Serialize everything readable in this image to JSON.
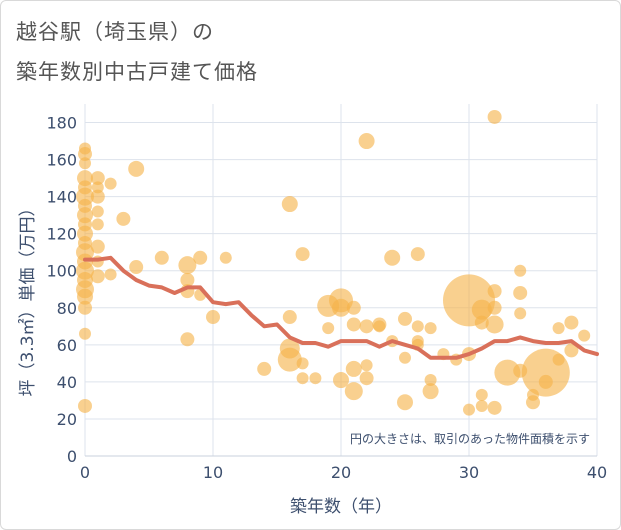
{
  "header": {
    "title_line1": "越谷駅（埼玉県）の",
    "title_line2": "築年数別中古戸建て価格"
  },
  "chart_data": {
    "type": "scatter",
    "title": "越谷駅（埼玉県）の築年数別中古戸建て価格",
    "xlabel": "築年数（年）",
    "ylabel": "坪（3.3㎡）単価（万円）",
    "xlim": [
      0,
      40
    ],
    "ylim": [
      0,
      190
    ],
    "x_ticks": [
      0,
      10,
      20,
      30,
      40
    ],
    "y_ticks": [
      0,
      20,
      40,
      60,
      80,
      100,
      120,
      140,
      160,
      180
    ],
    "grid": true,
    "note": "円の大きさは、取引のあった物件面積を示す",
    "colors": {
      "bubble": "#f5b34a",
      "line": "#d9705a",
      "text": "#3d4f6e",
      "grid": "#dde3ec"
    },
    "bubbles": [
      {
        "x": 0,
        "y": 166,
        "s": 6
      },
      {
        "x": 0,
        "y": 163,
        "s": 7
      },
      {
        "x": 0,
        "y": 158,
        "s": 6
      },
      {
        "x": 0,
        "y": 150,
        "s": 8
      },
      {
        "x": 0,
        "y": 145,
        "s": 7
      },
      {
        "x": 0,
        "y": 140,
        "s": 9
      },
      {
        "x": 0,
        "y": 135,
        "s": 7
      },
      {
        "x": 0,
        "y": 130,
        "s": 8
      },
      {
        "x": 0,
        "y": 125,
        "s": 7
      },
      {
        "x": 0,
        "y": 120,
        "s": 8
      },
      {
        "x": 0,
        "y": 115,
        "s": 7
      },
      {
        "x": 0,
        "y": 110,
        "s": 9
      },
      {
        "x": 0,
        "y": 105,
        "s": 8
      },
      {
        "x": 0,
        "y": 100,
        "s": 9
      },
      {
        "x": 0,
        "y": 95,
        "s": 8
      },
      {
        "x": 0,
        "y": 90,
        "s": 9
      },
      {
        "x": 0,
        "y": 86,
        "s": 8
      },
      {
        "x": 0,
        "y": 80,
        "s": 7
      },
      {
        "x": 0,
        "y": 66,
        "s": 6
      },
      {
        "x": 0,
        "y": 27,
        "s": 7
      },
      {
        "x": 1,
        "y": 150,
        "s": 7
      },
      {
        "x": 1,
        "y": 145,
        "s": 6
      },
      {
        "x": 1,
        "y": 140,
        "s": 7
      },
      {
        "x": 1,
        "y": 132,
        "s": 6
      },
      {
        "x": 1,
        "y": 125,
        "s": 6
      },
      {
        "x": 1,
        "y": 113,
        "s": 7
      },
      {
        "x": 1,
        "y": 105,
        "s": 6
      },
      {
        "x": 1,
        "y": 97,
        "s": 7
      },
      {
        "x": 2,
        "y": 147,
        "s": 6
      },
      {
        "x": 2,
        "y": 98,
        "s": 6
      },
      {
        "x": 3,
        "y": 128,
        "s": 7
      },
      {
        "x": 4,
        "y": 155,
        "s": 8
      },
      {
        "x": 4,
        "y": 102,
        "s": 7
      },
      {
        "x": 6,
        "y": 107,
        "s": 7
      },
      {
        "x": 8,
        "y": 103,
        "s": 9
      },
      {
        "x": 8,
        "y": 95,
        "s": 7
      },
      {
        "x": 8,
        "y": 89,
        "s": 7
      },
      {
        "x": 8,
        "y": 63,
        "s": 7
      },
      {
        "x": 9,
        "y": 107,
        "s": 7
      },
      {
        "x": 9,
        "y": 87,
        "s": 6
      },
      {
        "x": 10,
        "y": 75,
        "s": 7
      },
      {
        "x": 11,
        "y": 107,
        "s": 6
      },
      {
        "x": 14,
        "y": 47,
        "s": 7
      },
      {
        "x": 16,
        "y": 136,
        "s": 8
      },
      {
        "x": 16,
        "y": 75,
        "s": 7
      },
      {
        "x": 16,
        "y": 58,
        "s": 10
      },
      {
        "x": 16,
        "y": 52,
        "s": 12
      },
      {
        "x": 17,
        "y": 109,
        "s": 7
      },
      {
        "x": 17,
        "y": 50,
        "s": 6
      },
      {
        "x": 17,
        "y": 42,
        "s": 6
      },
      {
        "x": 18,
        "y": 42,
        "s": 6
      },
      {
        "x": 19,
        "y": 69,
        "s": 6
      },
      {
        "x": 19,
        "y": 81,
        "s": 11
      },
      {
        "x": 20,
        "y": 84,
        "s": 12
      },
      {
        "x": 20,
        "y": 80,
        "s": 9
      },
      {
        "x": 20,
        "y": 41,
        "s": 8
      },
      {
        "x": 21,
        "y": 80,
        "s": 7
      },
      {
        "x": 21,
        "y": 71,
        "s": 7
      },
      {
        "x": 21,
        "y": 47,
        "s": 8
      },
      {
        "x": 21,
        "y": 35,
        "s": 9
      },
      {
        "x": 22,
        "y": 170,
        "s": 8
      },
      {
        "x": 22,
        "y": 70,
        "s": 7
      },
      {
        "x": 22,
        "y": 49,
        "s": 6
      },
      {
        "x": 22,
        "y": 42,
        "s": 7
      },
      {
        "x": 23,
        "y": 71,
        "s": 7
      },
      {
        "x": 23,
        "y": 70,
        "s": 6
      },
      {
        "x": 24,
        "y": 107,
        "s": 8
      },
      {
        "x": 24,
        "y": 62,
        "s": 6
      },
      {
        "x": 25,
        "y": 74,
        "s": 7
      },
      {
        "x": 25,
        "y": 53,
        "s": 6
      },
      {
        "x": 25,
        "y": 29,
        "s": 8
      },
      {
        "x": 26,
        "y": 109,
        "s": 7
      },
      {
        "x": 26,
        "y": 70,
        "s": 6
      },
      {
        "x": 26,
        "y": 62,
        "s": 6
      },
      {
        "x": 26,
        "y": 60,
        "s": 6
      },
      {
        "x": 27,
        "y": 69,
        "s": 6
      },
      {
        "x": 27,
        "y": 41,
        "s": 6
      },
      {
        "x": 27,
        "y": 35,
        "s": 8
      },
      {
        "x": 28,
        "y": 55,
        "s": 6
      },
      {
        "x": 29,
        "y": 52,
        "s": 6
      },
      {
        "x": 30,
        "y": 84,
        "s": 26
      },
      {
        "x": 30,
        "y": 55,
        "s": 7
      },
      {
        "x": 30,
        "y": 25,
        "s": 6
      },
      {
        "x": 31,
        "y": 79,
        "s": 10
      },
      {
        "x": 31,
        "y": 72,
        "s": 7
      },
      {
        "x": 31,
        "y": 33,
        "s": 6
      },
      {
        "x": 31,
        "y": 27,
        "s": 6
      },
      {
        "x": 32,
        "y": 183,
        "s": 7
      },
      {
        "x": 32,
        "y": 89,
        "s": 7
      },
      {
        "x": 32,
        "y": 80,
        "s": 7
      },
      {
        "x": 32,
        "y": 71,
        "s": 9
      },
      {
        "x": 32,
        "y": 26,
        "s": 7
      },
      {
        "x": 33,
        "y": 45,
        "s": 13
      },
      {
        "x": 34,
        "y": 100,
        "s": 6
      },
      {
        "x": 34,
        "y": 88,
        "s": 7
      },
      {
        "x": 34,
        "y": 77,
        "s": 6
      },
      {
        "x": 34,
        "y": 46,
        "s": 7
      },
      {
        "x": 35,
        "y": 33,
        "s": 6
      },
      {
        "x": 35,
        "y": 29,
        "s": 7
      },
      {
        "x": 36,
        "y": 45,
        "s": 24
      },
      {
        "x": 36,
        "y": 40,
        "s": 7
      },
      {
        "x": 37,
        "y": 69,
        "s": 6
      },
      {
        "x": 37,
        "y": 52,
        "s": 6
      },
      {
        "x": 38,
        "y": 72,
        "s": 7
      },
      {
        "x": 38,
        "y": 57,
        "s": 7
      },
      {
        "x": 39,
        "y": 65,
        "s": 6
      }
    ],
    "trend": {
      "x": [
        0,
        1,
        2,
        3,
        4,
        5,
        6,
        7,
        8,
        9,
        10,
        11,
        12,
        13,
        14,
        15,
        16,
        17,
        18,
        19,
        20,
        21,
        22,
        23,
        24,
        25,
        26,
        27,
        28,
        29,
        30,
        31,
        32,
        33,
        34,
        35,
        36,
        37,
        38,
        39,
        40
      ],
      "y": [
        106,
        106,
        107,
        100,
        95,
        92,
        91,
        88,
        91,
        91,
        83,
        82,
        83,
        76,
        70,
        71,
        64,
        61,
        61,
        59,
        62,
        62,
        62,
        59,
        62,
        60,
        58,
        53,
        53,
        53,
        55,
        58,
        62,
        62,
        64,
        62,
        61,
        61,
        62,
        57,
        55
      ]
    }
  }
}
